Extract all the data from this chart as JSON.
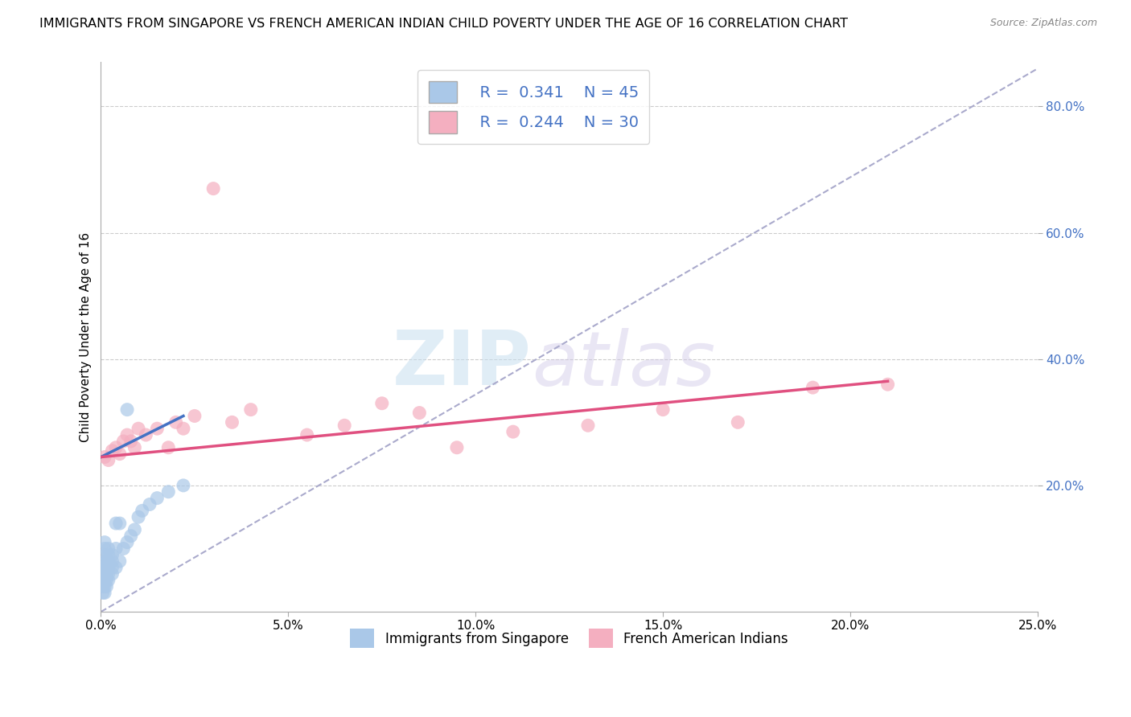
{
  "title": "IMMIGRANTS FROM SINGAPORE VS FRENCH AMERICAN INDIAN CHILD POVERTY UNDER THE AGE OF 16 CORRELATION CHART",
  "source": "Source: ZipAtlas.com",
  "ylabel": "Child Poverty Under the Age of 16",
  "xlim": [
    0.0,
    0.25
  ],
  "ylim": [
    0.0,
    0.87
  ],
  "xtick_labels": [
    "0.0%",
    "5.0%",
    "10.0%",
    "15.0%",
    "20.0%",
    "25.0%"
  ],
  "xtick_vals": [
    0.0,
    0.05,
    0.1,
    0.15,
    0.2,
    0.25
  ],
  "ytick_vals": [
    0.2,
    0.4,
    0.6,
    0.8
  ],
  "blue_R": 0.341,
  "blue_N": 45,
  "pink_R": 0.244,
  "pink_N": 30,
  "legend1_label": "Immigrants from Singapore",
  "legend2_label": "French American Indians",
  "blue_color": "#aac8e8",
  "pink_color": "#f4afc0",
  "blue_scatter_x": [
    0.0005,
    0.0005,
    0.0005,
    0.0005,
    0.0005,
    0.001,
    0.001,
    0.001,
    0.001,
    0.001,
    0.001,
    0.001,
    0.001,
    0.001,
    0.0015,
    0.0015,
    0.0015,
    0.0015,
    0.0015,
    0.002,
    0.002,
    0.002,
    0.002,
    0.002,
    0.002,
    0.003,
    0.003,
    0.003,
    0.003,
    0.004,
    0.004,
    0.004,
    0.005,
    0.005,
    0.006,
    0.007,
    0.007,
    0.008,
    0.009,
    0.01,
    0.011,
    0.013,
    0.015,
    0.018,
    0.022
  ],
  "blue_scatter_y": [
    0.03,
    0.04,
    0.05,
    0.06,
    0.07,
    0.03,
    0.04,
    0.05,
    0.06,
    0.07,
    0.08,
    0.09,
    0.1,
    0.11,
    0.04,
    0.05,
    0.06,
    0.07,
    0.08,
    0.05,
    0.06,
    0.07,
    0.08,
    0.09,
    0.1,
    0.06,
    0.07,
    0.08,
    0.09,
    0.07,
    0.1,
    0.14,
    0.08,
    0.14,
    0.1,
    0.11,
    0.32,
    0.12,
    0.13,
    0.15,
    0.16,
    0.17,
    0.18,
    0.19,
    0.2
  ],
  "pink_scatter_x": [
    0.001,
    0.002,
    0.003,
    0.004,
    0.005,
    0.006,
    0.007,
    0.008,
    0.009,
    0.01,
    0.012,
    0.015,
    0.018,
    0.02,
    0.022,
    0.025,
    0.03,
    0.035,
    0.04,
    0.055,
    0.065,
    0.075,
    0.085,
    0.095,
    0.11,
    0.13,
    0.15,
    0.17,
    0.19,
    0.21
  ],
  "pink_scatter_y": [
    0.245,
    0.24,
    0.255,
    0.26,
    0.25,
    0.27,
    0.28,
    0.27,
    0.26,
    0.29,
    0.28,
    0.29,
    0.26,
    0.3,
    0.29,
    0.31,
    0.67,
    0.3,
    0.32,
    0.28,
    0.295,
    0.33,
    0.315,
    0.26,
    0.285,
    0.295,
    0.32,
    0.3,
    0.355,
    0.36
  ],
  "blue_line_x": [
    0.0,
    0.022
  ],
  "blue_line_y": [
    0.245,
    0.31
  ],
  "pink_line_x": [
    0.0,
    0.21
  ],
  "pink_line_y": [
    0.245,
    0.365
  ],
  "dashed_line_x": [
    0.0,
    0.25
  ],
  "dashed_line_y": [
    0.0,
    0.86
  ],
  "dashed_color": "#aaaacc",
  "watermark_zip": "ZIP",
  "watermark_atlas": "atlas",
  "background_color": "#ffffff",
  "grid_color": "#cccccc",
  "title_fontsize": 11.5,
  "axis_label_fontsize": 11,
  "tick_fontsize": 11
}
